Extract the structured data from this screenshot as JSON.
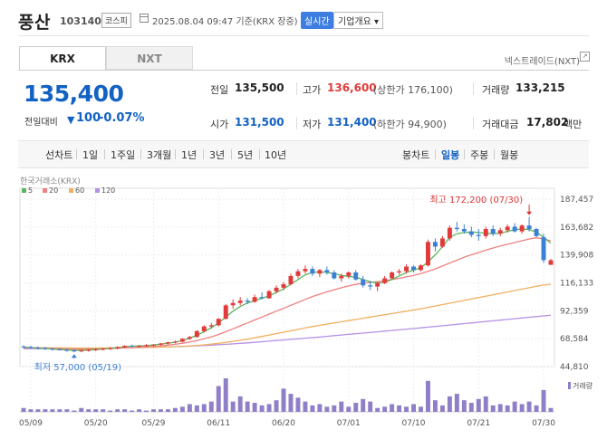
{
  "header": {
    "name": "풍산",
    "code": "103140",
    "market_badge": "코스피",
    "date_text": "2025.08.04 09:47 기준(KRX 장중)",
    "realtime_label": "실시간",
    "company_label": "기업개요 ▾"
  },
  "tabs": [
    {
      "label": "KRX",
      "active": true
    },
    {
      "label": "NXT",
      "active": false
    }
  ],
  "nextrade_link": "넥스트레이드(NXT)",
  "nextrade_icon": "external-link-icon",
  "quote": {
    "price": "135,400",
    "change_label": "전일대비",
    "change_icon": "down-triangle-icon",
    "change_value": "100",
    "change_pct": "-0.07%",
    "prev_close_label": "전일",
    "prev_close": "135,500",
    "high_label": "고가",
    "high": "136,600",
    "upper_limit": "(상한가 176,100)",
    "volume_label": "거래량",
    "volume": "133,215",
    "open_label": "시가",
    "open": "131,500",
    "low_label": "저가",
    "low": "131,400",
    "lower_limit": "(하한가 94,900)",
    "amount_label": "거래대금",
    "amount": "17,802",
    "amount_unit": "백만"
  },
  "periods": [
    "선차트",
    "1일",
    "1주일",
    "3개월",
    "1년",
    "3년",
    "5년",
    "10년"
  ],
  "chart_types": [
    {
      "label": "봉차트",
      "active": false
    },
    {
      "label": "일봉",
      "active": true
    },
    {
      "label": "주봉",
      "active": false
    },
    {
      "label": "월봉",
      "active": false
    }
  ],
  "colors": {
    "up": "#e23a3a",
    "down": "#3b7fd6",
    "ma5": "#5cb55c",
    "ma20": "#f08080",
    "ma60": "#f0b060",
    "ma120": "#b592e6",
    "volume": "#8f7fc7"
  },
  "chart_data": {
    "type": "candlestick",
    "source_label": "한국거래소(KRX)",
    "legend": [
      {
        "name": "5",
        "color": "#5cb55c"
      },
      {
        "name": "20",
        "color": "#f08080"
      },
      {
        "name": "60",
        "color": "#f0b060"
      },
      {
        "name": "120",
        "color": "#b592e6"
      }
    ],
    "y_ticks": [
      "187,457",
      "163,682",
      "139,908",
      "116,133",
      "92,359",
      "68,584",
      "44,810"
    ],
    "y_tick_values": [
      187457,
      163682,
      139908,
      116133,
      92359,
      68584,
      44810
    ],
    "ylim": [
      44810,
      187457
    ],
    "x_tick_labels": [
      "05/09",
      "05/20",
      "05/29",
      "06/11",
      "06/20",
      "07/01",
      "07/10",
      "07/21",
      "07/30"
    ],
    "x_tick_index": [
      1,
      10,
      18,
      27,
      36,
      45,
      54,
      63,
      72
    ],
    "max_annotation": "최고 172,200 (07/30)",
    "min_annotation": "최저 57,000 (05/19)",
    "volume_label": "거래량",
    "candles": [
      [
        62000,
        63000,
        60500,
        61500
      ],
      [
        61500,
        62500,
        60000,
        61000
      ],
      [
        61000,
        62000,
        59500,
        60500
      ],
      [
        60500,
        61500,
        59000,
        60000
      ],
      [
        60000,
        61000,
        58500,
        59500
      ],
      [
        59500,
        60500,
        58500,
        59000
      ],
      [
        59000,
        60000,
        57500,
        58500
      ],
      [
        58500,
        59500,
        57000,
        58000
      ],
      [
        58000,
        59000,
        57000,
        58500
      ],
      [
        58500,
        60000,
        57500,
        59000
      ],
      [
        59000,
        60500,
        58000,
        59500
      ],
      [
        59500,
        61000,
        58500,
        60000
      ],
      [
        60000,
        61500,
        59000,
        60500
      ],
      [
        60500,
        62000,
        59500,
        61500
      ],
      [
        61500,
        63000,
        60500,
        62500
      ],
      [
        62500,
        63500,
        61500,
        62000
      ],
      [
        62000,
        63000,
        61000,
        62500
      ],
      [
        62500,
        64000,
        61500,
        63000
      ],
      [
        63000,
        64000,
        62000,
        63500
      ],
      [
        63500,
        65000,
        62500,
        64500
      ],
      [
        64500,
        66000,
        63500,
        65500
      ],
      [
        65500,
        67000,
        64500,
        66000
      ],
      [
        66000,
        69000,
        65500,
        68500
      ],
      [
        68500,
        71000,
        67500,
        70000
      ],
      [
        70000,
        76000,
        69500,
        75000
      ],
      [
        75000,
        80000,
        74000,
        79000
      ],
      [
        79000,
        82000,
        77000,
        80000
      ],
      [
        80000,
        86000,
        79000,
        85500
      ],
      [
        85500,
        98000,
        85000,
        97000
      ],
      [
        97000,
        102000,
        94000,
        99000
      ],
      [
        99000,
        104000,
        97000,
        101000
      ],
      [
        101000,
        103000,
        98000,
        100000
      ],
      [
        100000,
        106000,
        99000,
        104000
      ],
      [
        104000,
        108000,
        102000,
        103000
      ],
      [
        103000,
        110000,
        102500,
        109000
      ],
      [
        109000,
        114000,
        107000,
        112000
      ],
      [
        112000,
        117000,
        110000,
        115000
      ],
      [
        115000,
        124000,
        114000,
        122000
      ],
      [
        122000,
        128000,
        120000,
        126000
      ],
      [
        126000,
        131000,
        124000,
        128000
      ],
      [
        128000,
        130000,
        122000,
        124000
      ],
      [
        124000,
        128000,
        121000,
        127000
      ],
      [
        127000,
        130000,
        123000,
        125000
      ],
      [
        125000,
        127000,
        119000,
        120000
      ],
      [
        120000,
        124000,
        117000,
        122000
      ],
      [
        122000,
        126000,
        120000,
        125000
      ],
      [
        125000,
        127000,
        118000,
        119000
      ],
      [
        119000,
        122000,
        112000,
        114000
      ],
      [
        114000,
        118000,
        110000,
        113000
      ],
      [
        113000,
        117000,
        109000,
        116000
      ],
      [
        116000,
        122000,
        115000,
        120000
      ],
      [
        120000,
        126000,
        119000,
        125000
      ],
      [
        125000,
        128000,
        123000,
        126000
      ],
      [
        126000,
        132000,
        124000,
        130000
      ],
      [
        130000,
        131000,
        125000,
        127000
      ],
      [
        127000,
        132000,
        126000,
        131000
      ],
      [
        131000,
        153000,
        130000,
        151000
      ],
      [
        151000,
        154000,
        143000,
        147000
      ],
      [
        147000,
        156000,
        146000,
        154000
      ],
      [
        154000,
        165000,
        152000,
        163000
      ],
      [
        163000,
        168000,
        160000,
        162000
      ],
      [
        162000,
        166000,
        158000,
        160000
      ],
      [
        160000,
        164000,
        155000,
        157000
      ],
      [
        157000,
        162000,
        152000,
        156000
      ],
      [
        156000,
        164000,
        154000,
        162000
      ],
      [
        162000,
        165000,
        156000,
        158000
      ],
      [
        158000,
        163000,
        156000,
        161000
      ],
      [
        161000,
        166000,
        159000,
        164000
      ],
      [
        164000,
        167000,
        159000,
        160000
      ],
      [
        160000,
        166000,
        158000,
        165000
      ],
      [
        165000,
        172200,
        160000,
        162000
      ],
      [
        162000,
        163000,
        155000,
        156000
      ],
      [
        155000,
        158000,
        133000,
        135500
      ],
      [
        131500,
        136600,
        131400,
        135400
      ]
    ],
    "ma5": [
      61500,
      61000,
      60500,
      60200,
      59800,
      59300,
      59000,
      58700,
      58600,
      58900,
      59300,
      59800,
      60300,
      61000,
      61700,
      62200,
      62500,
      62700,
      63200,
      63900,
      64700,
      65600,
      67000,
      69000,
      71500,
      74500,
      78000,
      82000,
      87000,
      92000,
      96000,
      99000,
      101000,
      103000,
      105000,
      108000,
      111000,
      115000,
      119000,
      123000,
      125000,
      125500,
      125000,
      124000,
      122500,
      121500,
      121000,
      119000,
      117000,
      116000,
      116500,
      119000,
      122000,
      125000,
      127000,
      129000,
      134000,
      140000,
      147000,
      155000,
      158000,
      159000,
      159500,
      159000,
      158500,
      158000,
      158500,
      160000,
      161500,
      162000,
      161500,
      159500,
      155000,
      150000
    ],
    "ma20": [
      61000,
      60800,
      60600,
      60400,
      60200,
      60000,
      59800,
      59700,
      59600,
      59700,
      59800,
      60000,
      60200,
      60400,
      60700,
      61000,
      61300,
      61600,
      62000,
      62500,
      63100,
      63800,
      64700,
      65700,
      67000,
      68500,
      70200,
      72200,
      74500,
      77000,
      79500,
      82000,
      84500,
      87000,
      89500,
      92000,
      94500,
      97000,
      99500,
      102000,
      104500,
      106500,
      108500,
      110300,
      112000,
      113500,
      114800,
      115800,
      116500,
      117200,
      118000,
      119000,
      120000,
      121200,
      122500,
      124000,
      126000,
      128000,
      130500,
      133000,
      135500,
      138000,
      140000,
      142000,
      144000,
      145800,
      147500,
      149000,
      150500,
      152000,
      153500,
      154500,
      153500,
      152000
    ],
    "ma60": [
      61000,
      60950,
      60900,
      60850,
      60800,
      60750,
      60700,
      60650,
      60600,
      60600,
      60600,
      60650,
      60700,
      60750,
      60800,
      60900,
      61000,
      61100,
      61250,
      61400,
      61600,
      61800,
      62100,
      62400,
      62800,
      63300,
      63900,
      64600,
      65400,
      66300,
      67200,
      68200,
      69300,
      70500,
      71700,
      72900,
      74100,
      75300,
      76500,
      77700,
      78900,
      80000,
      81000,
      82000,
      83000,
      84000,
      85000,
      86000,
      87000,
      88000,
      89000,
      90000,
      91000,
      92000,
      93000,
      94000,
      95200,
      96400,
      97600,
      98800,
      100000,
      101200,
      102400,
      103600,
      104800,
      106000,
      107200,
      108400,
      109600,
      110800,
      112000,
      113200,
      114200,
      115000
    ],
    "ma120": [
      60000,
      60050,
      60100,
      60150,
      60200,
      60250,
      60300,
      60350,
      60400,
      60450,
      60500,
      60550,
      60600,
      60700,
      60800,
      60900,
      61000,
      61150,
      61300,
      61450,
      61600,
      61800,
      62000,
      62250,
      62500,
      62800,
      63100,
      63450,
      63800,
      64200,
      64600,
      65050,
      65500,
      66000,
      66500,
      67000,
      67500,
      68000,
      68500,
      69000,
      69500,
      70050,
      70600,
      71150,
      71700,
      72250,
      72800,
      73350,
      73900,
      74450,
      75000,
      75550,
      76100,
      76650,
      77200,
      77800,
      78400,
      79000,
      79600,
      80200,
      80800,
      81400,
      82000,
      82600,
      83200,
      83800,
      84400,
      85000,
      85600,
      86200,
      86800,
      87400,
      88000,
      88500
    ],
    "volume": [
      3,
      2,
      2,
      2,
      2,
      2,
      2,
      1,
      3,
      2,
      2,
      2,
      1,
      2,
      2,
      1,
      2,
      1,
      2,
      2,
      2,
      3,
      4,
      6,
      5,
      6,
      8,
      20,
      26,
      8,
      12,
      8,
      7,
      5,
      6,
      9,
      18,
      14,
      11,
      8,
      5,
      6,
      4,
      5,
      8,
      4,
      7,
      10,
      8,
      3,
      4,
      6,
      5,
      4,
      6,
      4,
      24,
      9,
      5,
      12,
      14,
      9,
      7,
      10,
      12,
      5,
      6,
      5,
      8,
      6,
      8,
      5,
      17,
      3
    ]
  }
}
